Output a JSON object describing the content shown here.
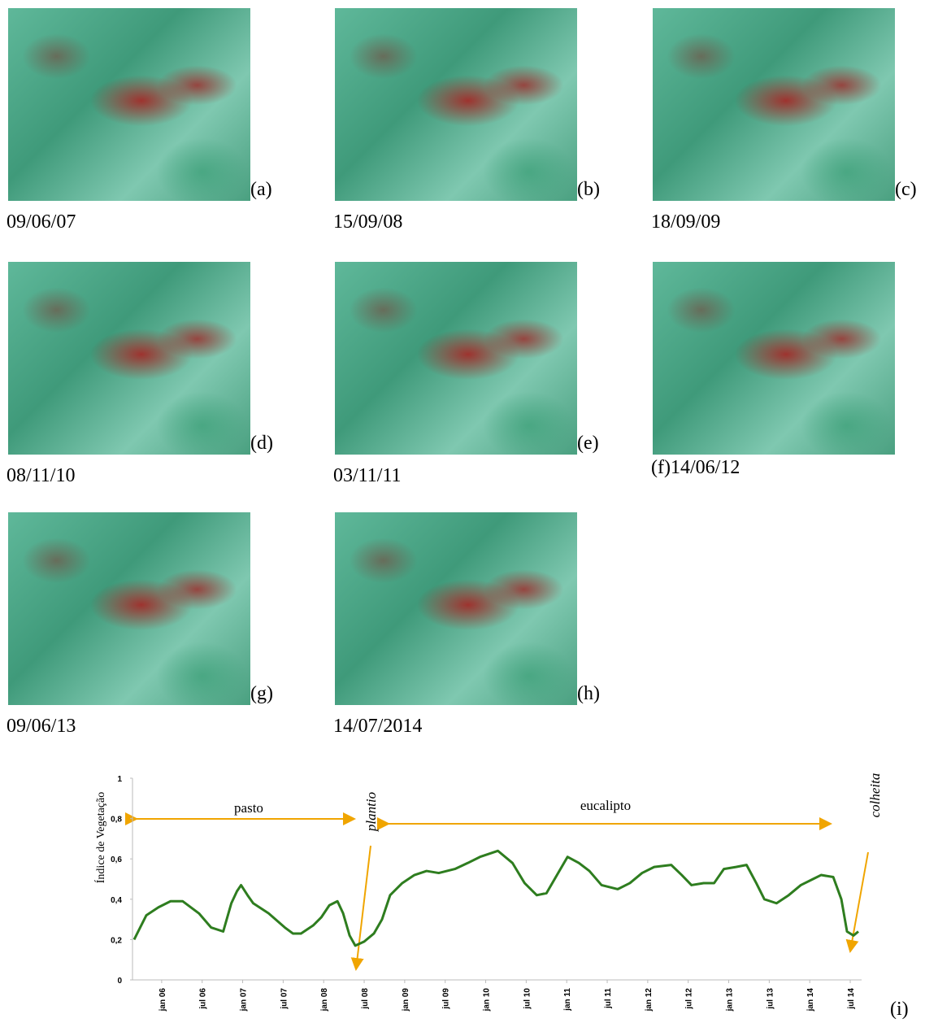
{
  "panels": [
    {
      "letter": "(a)",
      "date": "09/06/07"
    },
    {
      "letter": "(b)",
      "date": "15/09/08"
    },
    {
      "letter": "(c)",
      "date": "18/09/09"
    },
    {
      "letter": "(d)",
      "date": "08/11/10"
    },
    {
      "letter": "(e)",
      "date": "03/11/11"
    },
    {
      "date": "(f)14/06/12"
    },
    {
      "letter": "(g)",
      "date": "09/06/13"
    },
    {
      "letter": "(h)",
      "date": "14/07/2014"
    }
  ],
  "chart_data": {
    "type": "line",
    "y_label": "Índice de Vegetação",
    "panel_label": "(i)",
    "annotations": [
      "pasto",
      "plantio",
      "eucalipto",
      "colheita"
    ],
    "x": [
      2005.66,
      2005.81,
      2005.96,
      2006.11,
      2006.26,
      2006.46,
      2006.61,
      2006.76,
      2006.86,
      2006.93,
      2006.98,
      2007.06,
      2007.13,
      2007.32,
      2007.52,
      2007.62,
      2007.72,
      2007.87,
      2007.97,
      2008.07,
      2008.17,
      2008.24,
      2008.32,
      2008.39,
      2008.5,
      2008.62,
      2008.72,
      2008.82,
      2008.97,
      2009.12,
      2009.27,
      2009.42,
      2009.62,
      2009.78,
      2009.93,
      2010.15,
      2010.33,
      2010.48,
      2010.63,
      2010.75,
      2010.88,
      2011.01,
      2011.15,
      2011.28,
      2011.43,
      2011.63,
      2011.78,
      2011.93,
      2012.08,
      2012.29,
      2012.42,
      2012.54,
      2012.69,
      2012.82,
      2012.94,
      2013.09,
      2013.22,
      2013.34,
      2013.44,
      2013.59,
      2013.74,
      2013.89,
      2014.04,
      2014.14,
      2014.29,
      2014.39,
      2014.46,
      2014.54,
      2014.6
    ],
    "series": [
      {
        "color": "#2e7d1f",
        "values": [
          0.2,
          0.32,
          0.36,
          0.39,
          0.39,
          0.33,
          0.26,
          0.24,
          0.38,
          0.44,
          0.47,
          0.42,
          0.38,
          0.33,
          0.26,
          0.23,
          0.23,
          0.27,
          0.31,
          0.37,
          0.39,
          0.33,
          0.22,
          0.17,
          0.19,
          0.23,
          0.3,
          0.42,
          0.48,
          0.52,
          0.54,
          0.53,
          0.55,
          0.58,
          0.61,
          0.64,
          0.58,
          0.48,
          0.42,
          0.43,
          0.52,
          0.61,
          0.58,
          0.54,
          0.47,
          0.45,
          0.48,
          0.53,
          0.56,
          0.57,
          0.52,
          0.47,
          0.48,
          0.48,
          0.55,
          0.56,
          0.57,
          0.48,
          0.4,
          0.38,
          0.42,
          0.47,
          0.5,
          0.52,
          0.51,
          0.4,
          0.24,
          0.22,
          0.24
        ]
      }
    ],
    "xlim": [
      2005.66,
      2014.6
    ],
    "ylim": [
      0,
      1
    ],
    "xticks": [
      {
        "value": 2006,
        "label": "jan 06"
      },
      {
        "value": 2006.5,
        "label": "jul 06"
      },
      {
        "value": 2007,
        "label": "jan 07"
      },
      {
        "value": 2007.5,
        "label": "jul 07"
      },
      {
        "value": 2008,
        "label": "jan 08"
      },
      {
        "value": 2008.5,
        "label": "jul 08"
      },
      {
        "value": 2009,
        "label": "jan 09"
      },
      {
        "value": 2009.5,
        "label": "jul 09"
      },
      {
        "value": 2010,
        "label": "jan 10"
      },
      {
        "value": 2010.5,
        "label": "jul 10"
      },
      {
        "value": 2011,
        "label": "jan 11"
      },
      {
        "value": 2011.5,
        "label": "jul 11"
      },
      {
        "value": 2012,
        "label": "jan 12"
      },
      {
        "value": 2012.5,
        "label": "jul 12"
      },
      {
        "value": 2013,
        "label": "jan 13"
      },
      {
        "value": 2013.5,
        "label": "jul 13"
      },
      {
        "value": 2014,
        "label": "jan 14"
      },
      {
        "value": 2014.5,
        "label": "jul 14"
      }
    ],
    "yticks": [
      0,
      {
        "value": 0.2,
        "label": "0,2"
      },
      {
        "value": 0.4,
        "label": "0,4"
      },
      {
        "value": 0.6,
        "label": "0,6"
      },
      {
        "value": 0.8,
        "label": "0,8"
      },
      1
    ]
  }
}
